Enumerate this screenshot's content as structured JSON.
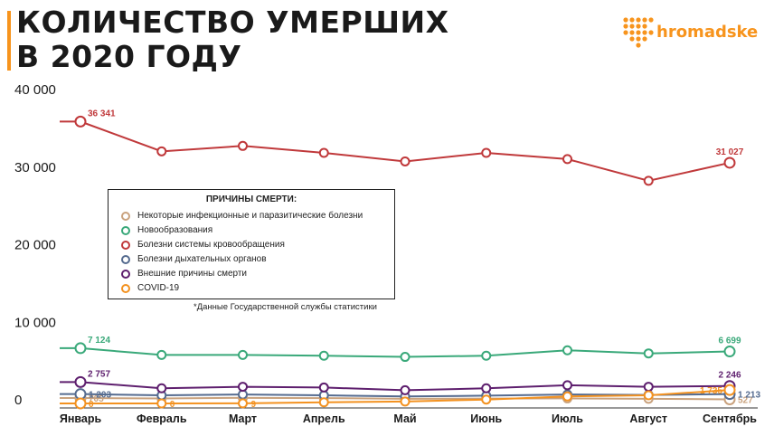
{
  "header": {
    "title_line1": "КОЛИЧЕСТВО УМЕРШИХ",
    "title_line2": "В 2020 ГОДУ",
    "brand": "hromadske",
    "brand_color": "#f7941d"
  },
  "footnote": "*Данные Государственной службы статистики",
  "chart_data": {
    "type": "line",
    "categories": [
      "Январь",
      "Февраль",
      "Март",
      "Апрель",
      "Май",
      "Июнь",
      "Июль",
      "Август",
      "Сентябрь"
    ],
    "y_ticks": [
      {
        "value": 0,
        "label": "0"
      },
      {
        "value": 10000,
        "label": "10 000"
      },
      {
        "value": 20000,
        "label": "20 000"
      },
      {
        "value": 30000,
        "label": "30 000"
      },
      {
        "value": 40000,
        "label": "40 000"
      }
    ],
    "ylim": [
      0,
      40000
    ],
    "grid": false,
    "legend_placement": "center-left",
    "legend_title": "ПРИЧИНЫ СМЕРТИ:",
    "series": [
      {
        "name": "Некоторые инфекционные и паразитические болезни",
        "color": "#c9a27e",
        "values": [
          705,
          640,
          720,
          690,
          600,
          620,
          650,
          600,
          527
        ],
        "labels": [
          {
            "index": 0,
            "text": "705",
            "pos": "right"
          },
          {
            "index": 8,
            "text": "527",
            "pos": "right"
          }
        ]
      },
      {
        "name": "Новообразования",
        "color": "#3aa97a",
        "values": [
          7124,
          6250,
          6250,
          6150,
          6000,
          6150,
          6850,
          6450,
          6699
        ],
        "labels": [
          {
            "index": 0,
            "text": "7 124",
            "pos": "above-right"
          },
          {
            "index": 8,
            "text": "6 699",
            "pos": "above"
          }
        ]
      },
      {
        "name": "Болезни системы кровообращения",
        "color": "#c0393b",
        "values": [
          36341,
          32500,
          33200,
          32300,
          31200,
          32300,
          31500,
          28700,
          31027
        ],
        "labels": [
          {
            "index": 0,
            "text": "36 341",
            "pos": "above-right"
          },
          {
            "index": 8,
            "text": "31 027",
            "pos": "above"
          }
        ]
      },
      {
        "name": "Болезни дыхательных органов",
        "color": "#556b8f",
        "values": [
          1203,
          1050,
          1150,
          1050,
          900,
          1000,
          1150,
          1100,
          1213
        ],
        "labels": [
          {
            "index": 0,
            "text": "1 203",
            "pos": "right"
          },
          {
            "index": 8,
            "text": "1 213",
            "pos": "right"
          }
        ]
      },
      {
        "name": "Внешние причины смерти",
        "color": "#5e1f6e",
        "values": [
          2757,
          1950,
          2150,
          2050,
          1700,
          1950,
          2350,
          2150,
          2246
        ],
        "labels": [
          {
            "index": 0,
            "text": "2 757",
            "pos": "above-right"
          },
          {
            "index": 8,
            "text": "2 246",
            "pos": "above"
          }
        ]
      },
      {
        "name": "COVID-19",
        "color": "#f39221",
        "values": [
          0,
          0,
          9,
          150,
          250,
          500,
          900,
          1050,
          1735
        ],
        "labels": [
          {
            "index": 0,
            "text": "0",
            "pos": "right"
          },
          {
            "index": 1,
            "text": "0",
            "pos": "right"
          },
          {
            "index": 2,
            "text": "9",
            "pos": "right"
          },
          {
            "index": 8,
            "text": "1 735",
            "pos": "left"
          }
        ]
      }
    ]
  }
}
